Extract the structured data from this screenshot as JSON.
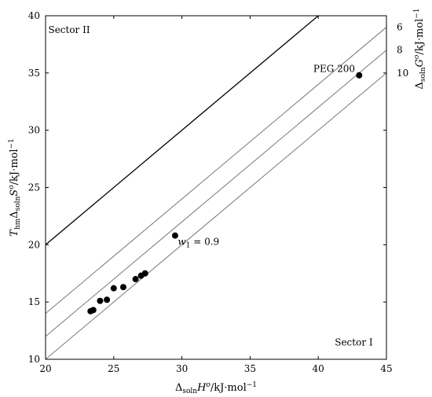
{
  "chart_data": {
    "type": "scatter",
    "xlim": [
      20,
      45
    ],
    "ylim": [
      10,
      40
    ],
    "xticks": [
      20,
      25,
      30,
      35,
      40,
      45
    ],
    "yticks": [
      10,
      15,
      20,
      25,
      30,
      35,
      40
    ],
    "grid": false,
    "xlabel": {
      "prefix": "Δ",
      "sub": "soln",
      "mid": "H",
      "sup": "o",
      "suffix": "/kJ·mol",
      "sup2": "−1"
    },
    "ylabel": {
      "pre": "T",
      "pre_sub": "hm",
      "delta": "Δ",
      "sub": "soln",
      "mid": "S",
      "sup": "o",
      "suffix": "/kJ·mol",
      "sup2": "−1"
    },
    "right_label": {
      "delta": "Δ",
      "sub": "soln",
      "mid": "G",
      "sup": "o",
      "suffix": "/kJ·mol",
      "sup2": "−1"
    },
    "points": [
      {
        "x": 23.3,
        "y": 14.2
      },
      {
        "x": 23.5,
        "y": 14.3
      },
      {
        "x": 24.0,
        "y": 15.1
      },
      {
        "x": 24.5,
        "y": 15.2
      },
      {
        "x": 25.0,
        "y": 16.2
      },
      {
        "x": 25.7,
        "y": 16.3
      },
      {
        "x": 26.6,
        "y": 17.0
      },
      {
        "x": 27.0,
        "y": 17.3
      },
      {
        "x": 27.3,
        "y": 17.5
      },
      {
        "x": 29.5,
        "y": 20.8
      },
      {
        "x": 43.0,
        "y": 34.8
      }
    ],
    "reference_lines": [
      {
        "offset": 0,
        "label": "",
        "style": "dark"
      },
      {
        "offset": 6,
        "label": "6",
        "style": "gray"
      },
      {
        "offset": 8,
        "label": "8",
        "style": "gray"
      },
      {
        "offset": 10,
        "label": "10",
        "style": "gray"
      }
    ],
    "annotations": [
      {
        "text": "Sector II",
        "x": 20.2,
        "y": 38.5,
        "anchor": "start"
      },
      {
        "text": "Sector I",
        "x": 44.0,
        "y": 11.2,
        "anchor": "end"
      },
      {
        "text": "PEG 200",
        "x": 42.7,
        "y": 35.1,
        "anchor": "end"
      }
    ],
    "w1_label": {
      "text": "w",
      "sub": "1",
      "rest": " = 0.9",
      "x": 29.7,
      "y": 20.0
    }
  }
}
